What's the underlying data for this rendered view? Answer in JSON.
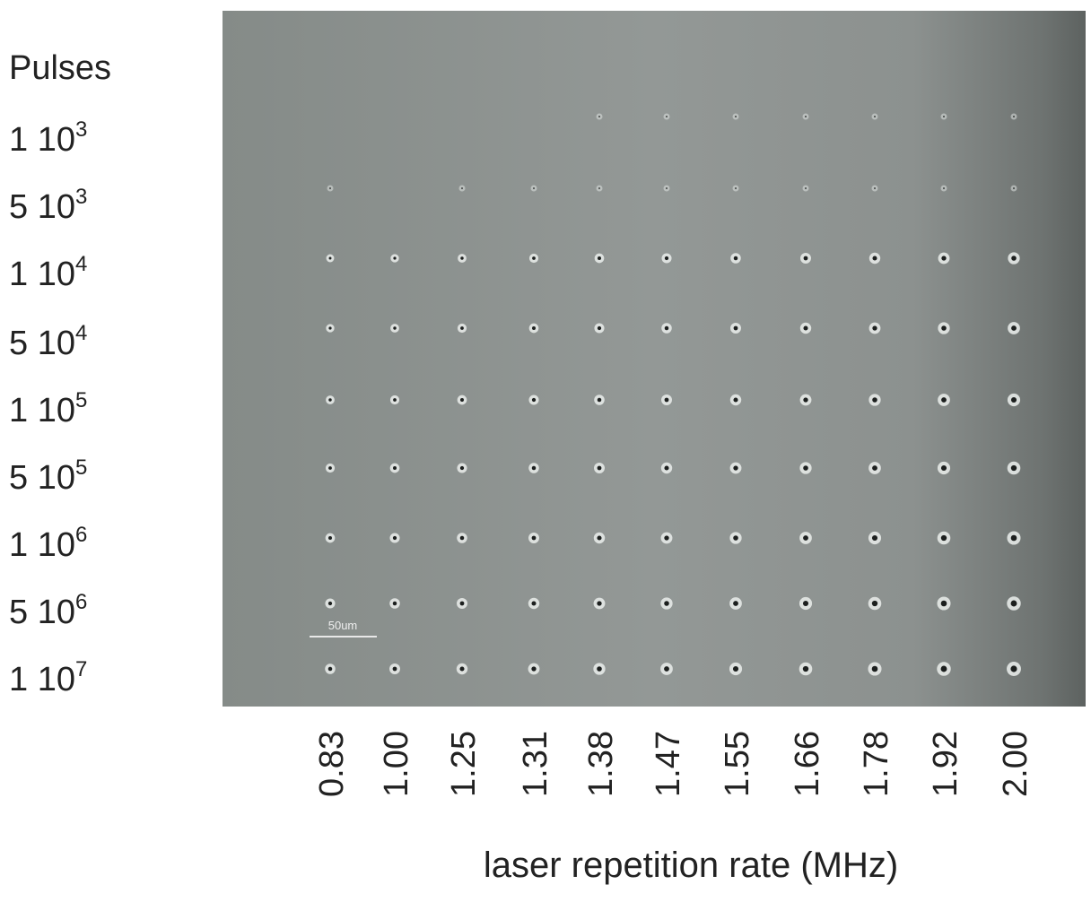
{
  "rows_heading": "Pulses",
  "rows": [
    {
      "label": "1 10",
      "sup": "3"
    },
    {
      "label": "5 10",
      "sup": "3"
    },
    {
      "label": "1 10",
      "sup": "4"
    },
    {
      "label": "5 10",
      "sup": "4"
    },
    {
      "label": "1 10",
      "sup": "5"
    },
    {
      "label": "5 10",
      "sup": "5"
    },
    {
      "label": "1 10",
      "sup": "6"
    },
    {
      "label": "5 10",
      "sup": "6"
    },
    {
      "label": "1 10",
      "sup": "7"
    }
  ],
  "columns": [
    "0.83",
    "1.00",
    "1.25",
    "1.31",
    "1.38",
    "1.47",
    "1.55",
    "1.66",
    "1.78",
    "1.92",
    "2.00"
  ],
  "x_axis_title": "laser repetition rate (MHz)",
  "scale_bar": "50um"
}
